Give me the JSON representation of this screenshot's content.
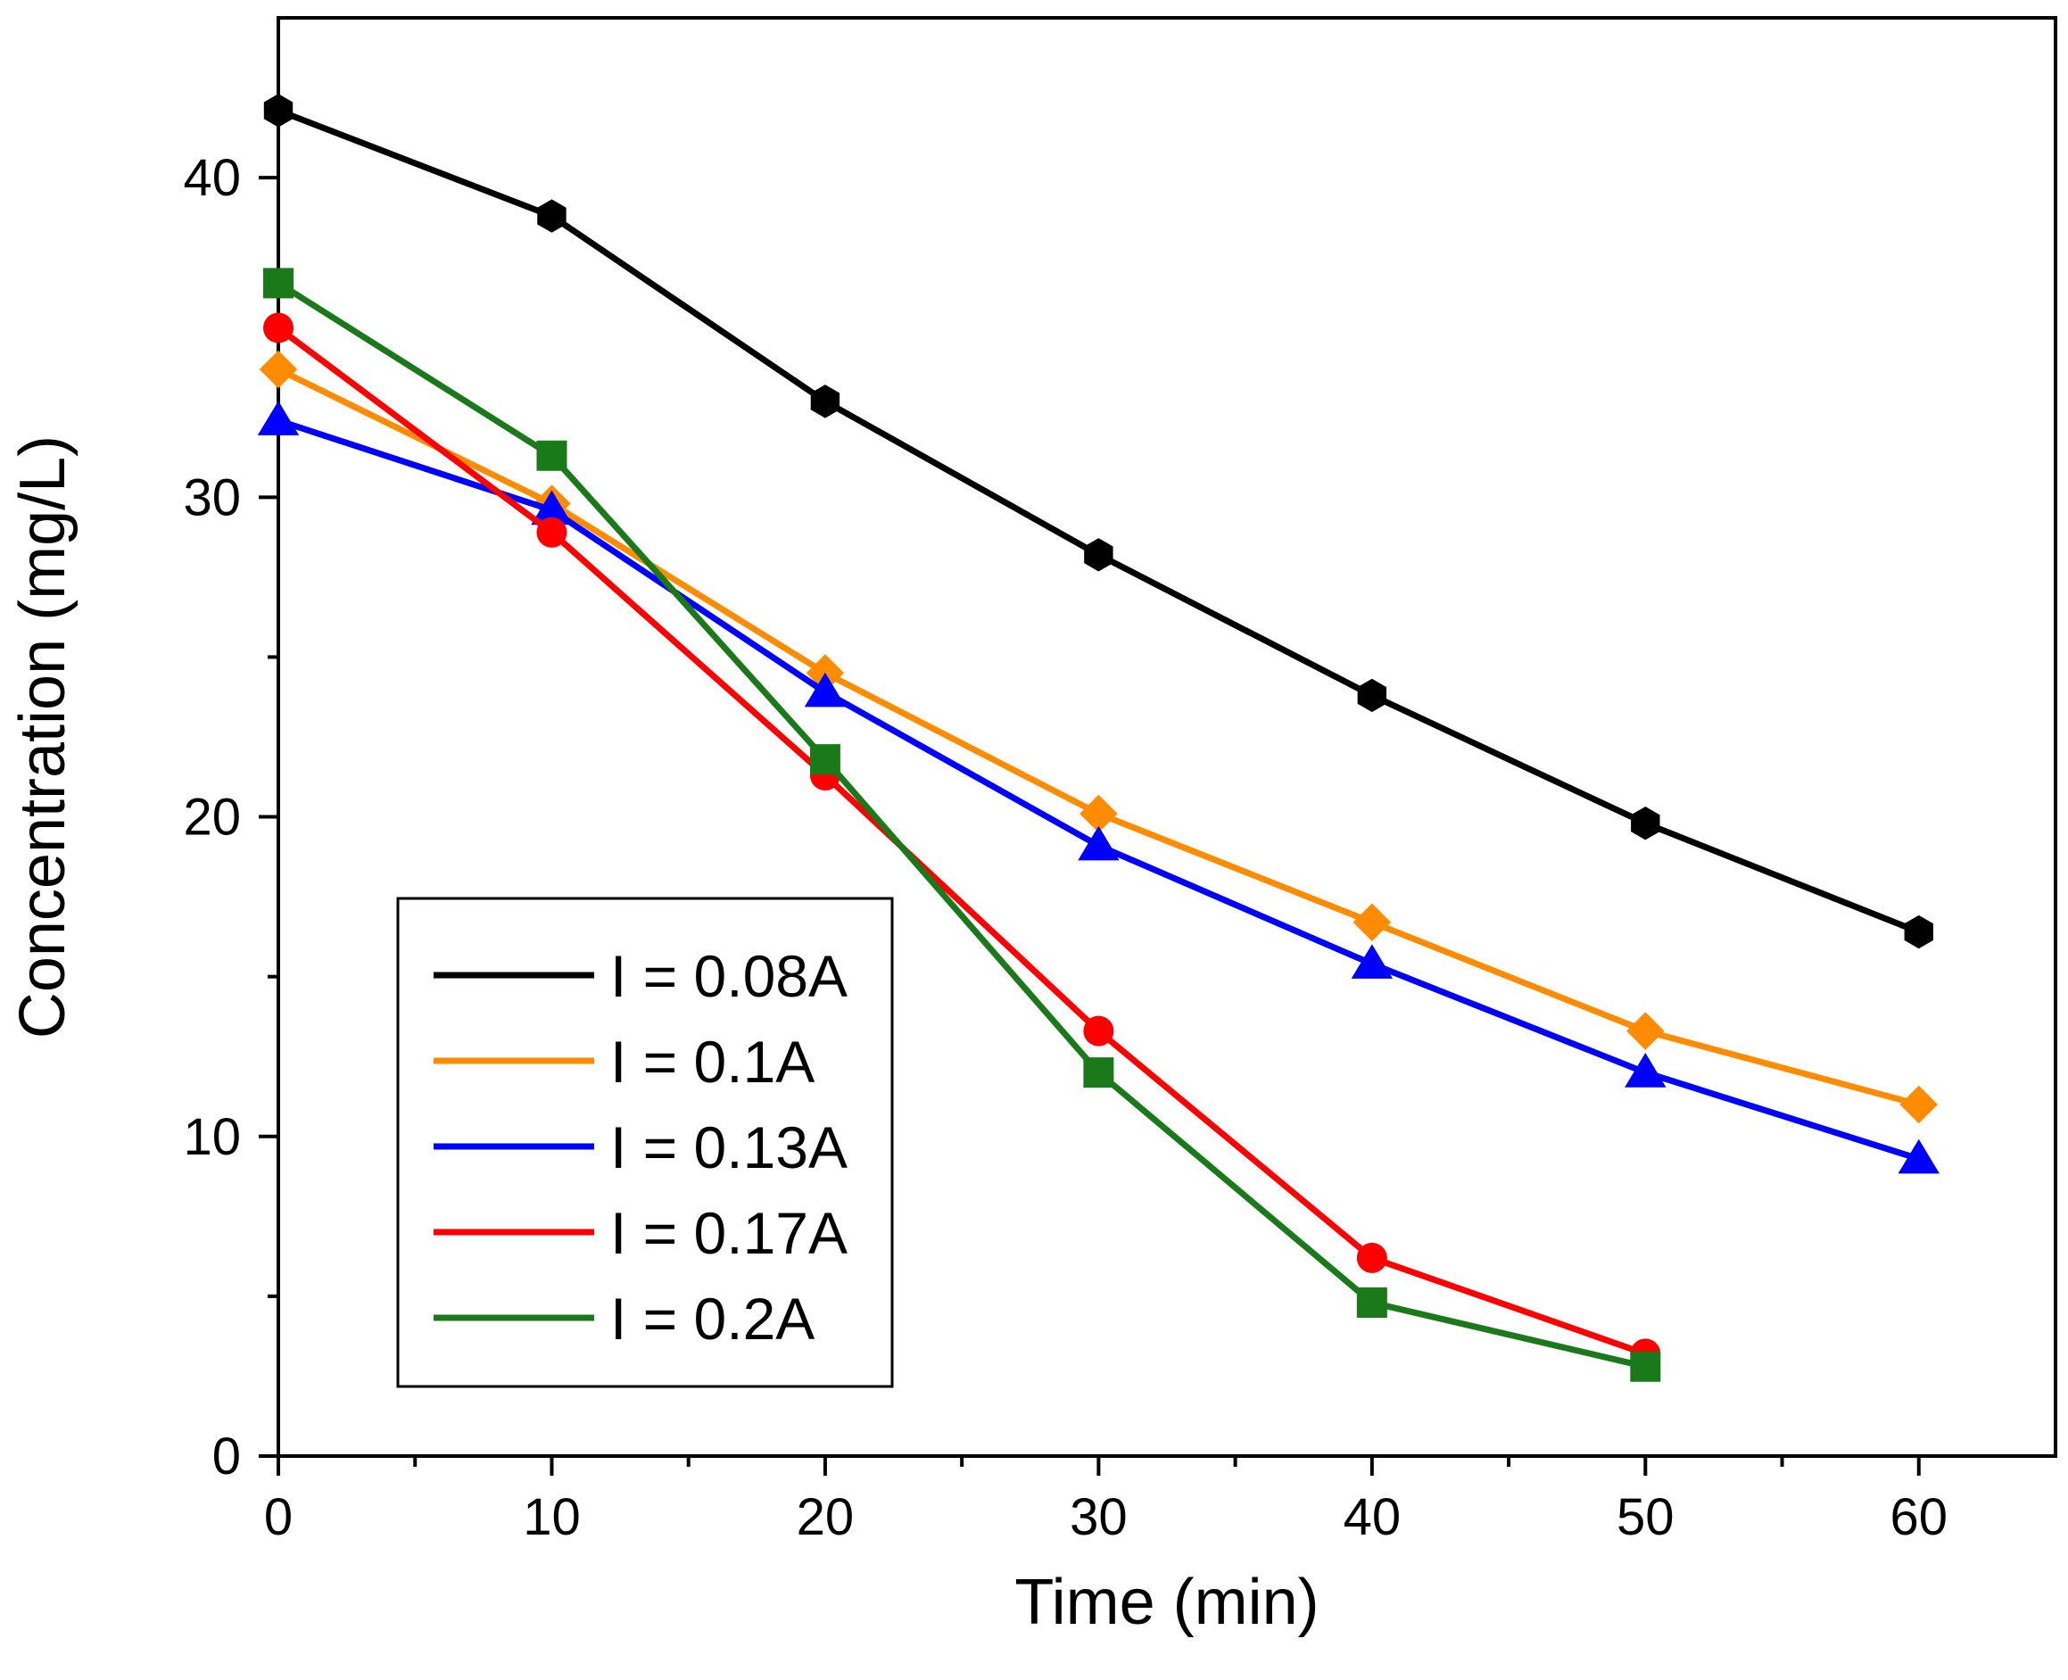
{
  "chart_data": {
    "type": "line",
    "title": "",
    "xlabel": "Time (min)",
    "ylabel": "Concentration (mg/L)",
    "xlim": [
      0,
      65
    ],
    "ylim": [
      0,
      45
    ],
    "x_ticks": [
      0,
      10,
      20,
      30,
      40,
      50,
      60
    ],
    "y_ticks": [
      0,
      10,
      20,
      30,
      40
    ],
    "x_tick_labels": [
      "0",
      "10",
      "20",
      "30",
      "40",
      "50",
      "60"
    ],
    "y_tick_labels": [
      "0",
      "10",
      "20",
      "30",
      "40"
    ],
    "grid": false,
    "legend_position": "bottom-left",
    "series": [
      {
        "name": "I = 0.08A",
        "color": "#000000",
        "marker": "hexagon",
        "x": [
          0,
          10,
          20,
          30,
          40,
          50,
          60
        ],
        "y": [
          42.1,
          38.8,
          33.0,
          28.2,
          23.8,
          19.8,
          16.4
        ]
      },
      {
        "name": "I = 0.1A",
        "color": "#FF8C00",
        "marker": "diamond",
        "x": [
          0,
          10,
          20,
          30,
          40,
          50,
          60
        ],
        "y": [
          34.0,
          29.8,
          24.5,
          20.1,
          16.7,
          13.3,
          11.0
        ]
      },
      {
        "name": "I = 0.13A",
        "color": "#0000FF",
        "marker": "triangle",
        "x": [
          0,
          10,
          20,
          30,
          40,
          50,
          60
        ],
        "y": [
          32.4,
          29.6,
          23.9,
          19.1,
          15.4,
          12.0,
          9.3
        ]
      },
      {
        "name": "I = 0.17A",
        "color": "#FF0000",
        "marker": "circle",
        "x": [
          0,
          10,
          20,
          30,
          40,
          50
        ],
        "y": [
          35.3,
          28.9,
          21.3,
          13.3,
          6.2,
          3.2
        ]
      },
      {
        "name": "I = 0.2A",
        "color": "#1A7A1A",
        "marker": "square",
        "x": [
          0,
          10,
          20,
          30,
          40,
          50
        ],
        "y": [
          36.7,
          31.3,
          21.8,
          12.0,
          4.8,
          2.8
        ]
      }
    ]
  }
}
